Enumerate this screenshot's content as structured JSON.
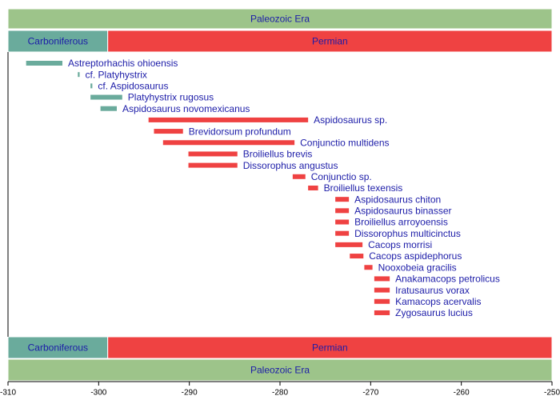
{
  "chart_data": {
    "type": "timeline",
    "era": {
      "name": "Paleozoic Era",
      "start": -310,
      "end": -250,
      "color": "#9dc48a"
    },
    "periods": [
      {
        "name": "Carboniferous",
        "start": -310,
        "end": -299,
        "color": "#6aab9c"
      },
      {
        "name": "Permian",
        "start": -299,
        "end": -250,
        "color": "#ef4242"
      }
    ],
    "categories": [
      "Astreptorhachis ohioensis",
      "cf. Platyhystrix",
      "cf. Aspidosaurus",
      "Platyhystrix rugosus",
      "Aspidosaurus novomexicanus",
      "Aspidosaurus sp.",
      "Brevidorsum profundum",
      "Conjunctio multidens",
      "Broiliellus brevis",
      "Dissorophus angustus",
      "Conjunctio sp.",
      "Broiliellus texensis",
      "Aspidosaurus chiton",
      "Aspidosaurus binasser",
      "Broiliellus arroyoensis",
      "Dissorophus multicinctus",
      "Cacops morrisi",
      "Cacops aspidephorus",
      "Nooxobeia gracilis",
      "Anakamacops petrolicus",
      "Iratusaurus vorax",
      "Kamacops acervalis",
      "Zygosaurus lucius"
    ],
    "start": [
      -308,
      -302.3,
      -300.9,
      -300.9,
      -299.8,
      -294.5,
      -293.9,
      -292.9,
      -290.1,
      -290.1,
      -278.6,
      -276.9,
      -273.9,
      -273.9,
      -273.9,
      -273.9,
      -273.9,
      -272.3,
      -270.7,
      -269.6,
      -269.6,
      -269.6,
      -269.6
    ],
    "end": [
      -304,
      -302.1,
      -300.7,
      -297.4,
      -298,
      -276.9,
      -290.7,
      -278.4,
      -284.7,
      -284.7,
      -277.2,
      -275.8,
      -272.4,
      -272.4,
      -272.4,
      -272.4,
      -270.9,
      -270.8,
      -269.8,
      -267.9,
      -267.9,
      -267.9,
      -267.9
    ],
    "colors": [
      "#6aab9c",
      "#6aab9c",
      "#6aab9c",
      "#6aab9c",
      "#6aab9c",
      "#ef4242",
      "#ef4242",
      "#ef4242",
      "#ef4242",
      "#ef4242",
      "#ef4242",
      "#ef4242",
      "#ef4242",
      "#ef4242",
      "#ef4242",
      "#ef4242",
      "#ef4242",
      "#ef4242",
      "#ef4242",
      "#ef4242",
      "#ef4242",
      "#ef4242",
      "#ef4242"
    ],
    "xlim": [
      -310,
      -250
    ],
    "xticks": [
      -310,
      -300,
      -290,
      -280,
      -270,
      -260,
      -250
    ]
  }
}
